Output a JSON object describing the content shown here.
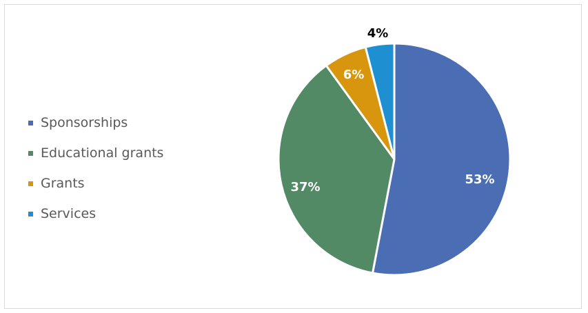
{
  "chart_data": {
    "type": "pie",
    "title": "",
    "legend_position": "left",
    "slices": [
      {
        "name": "Sponsorships",
        "value": 53,
        "label": "53%",
        "color": "#4a6db3",
        "label_color": "#ffffff"
      },
      {
        "name": "Educational grants",
        "value": 37,
        "label": "37%",
        "color": "#538a66",
        "label_color": "#ffffff"
      },
      {
        "name": "Grants",
        "value": 6,
        "label": "6%",
        "color": "#d8960e",
        "label_color": "#ffffff"
      },
      {
        "name": "Services",
        "value": 4,
        "label": "4%",
        "color": "#1e8fd1",
        "label_color": "#000000"
      }
    ]
  }
}
